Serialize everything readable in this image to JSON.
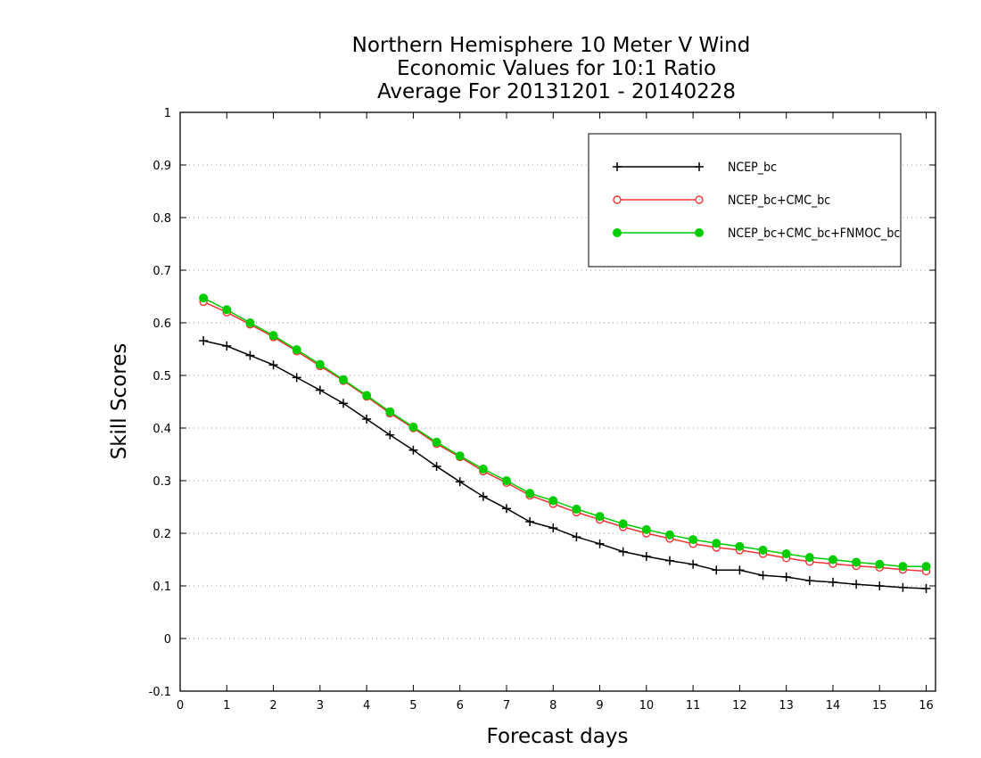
{
  "chart_data": {
    "type": "line",
    "title": [
      "Northern Hemisphere 10 Meter V Wind",
      "Economic Values for 10:1 Ratio",
      "Average For 20131201 - 20140228"
    ],
    "xlabel": "Forecast days",
    "ylabel": "Skill Scores",
    "xlim": [
      0,
      16.2
    ],
    "ylim": [
      -0.1,
      1
    ],
    "xticks": [
      0,
      1,
      2,
      3,
      4,
      5,
      6,
      7,
      8,
      9,
      10,
      11,
      12,
      13,
      14,
      15,
      16
    ],
    "xtick_labels": [
      "0",
      "1",
      "2",
      "3",
      "4",
      "5",
      "6",
      "7",
      "8",
      "9",
      "10",
      "11",
      "12",
      "13",
      "14",
      "15",
      "16"
    ],
    "yticks": [
      -0.1,
      0,
      0.1,
      0.2,
      0.3,
      0.4,
      0.5,
      0.6,
      0.7,
      0.8,
      0.9,
      1
    ],
    "ytick_labels": [
      "-0.1",
      "0",
      "0.1",
      "0.2",
      "0.3",
      "0.4",
      "0.5",
      "0.6",
      "0.7",
      "0.8",
      "0.9",
      "1"
    ],
    "grid": "horizontal dotted",
    "legend_position": "top-right",
    "x": [
      0.5,
      1,
      1.5,
      2,
      2.5,
      3,
      3.5,
      4,
      4.5,
      5,
      5.5,
      6,
      6.5,
      7,
      7.5,
      8,
      8.5,
      9,
      9.5,
      10,
      10.5,
      11,
      11.5,
      12,
      12.5,
      13,
      13.5,
      14,
      14.5,
      15,
      15.5,
      16
    ],
    "series": [
      {
        "name": "NCEP_bc",
        "color": "#000000",
        "marker": "plus",
        "values": [
          0.566,
          0.556,
          0.538,
          0.52,
          0.496,
          0.472,
          0.447,
          0.417,
          0.387,
          0.358,
          0.327,
          0.298,
          0.27,
          0.247,
          0.222,
          0.21,
          0.193,
          0.18,
          0.165,
          0.156,
          0.148,
          0.141,
          0.13,
          0.13,
          0.12,
          0.117,
          0.11,
          0.107,
          0.103,
          0.1,
          0.097,
          0.095
        ]
      },
      {
        "name": "NCEP_bc+CMC_bc",
        "color": "#ee3333",
        "marker": "open-circle",
        "values": [
          0.64,
          0.62,
          0.597,
          0.573,
          0.546,
          0.518,
          0.49,
          0.46,
          0.428,
          0.4,
          0.37,
          0.345,
          0.318,
          0.296,
          0.272,
          0.256,
          0.24,
          0.226,
          0.212,
          0.2,
          0.19,
          0.18,
          0.173,
          0.168,
          0.161,
          0.153,
          0.146,
          0.142,
          0.138,
          0.135,
          0.131,
          0.128
        ]
      },
      {
        "name": "NCEP_bc+CMC_bc+FNMOC_bc",
        "color": "#00cc00",
        "marker": "filled-circle",
        "values": [
          0.647,
          0.625,
          0.6,
          0.576,
          0.549,
          0.521,
          0.492,
          0.462,
          0.431,
          0.402,
          0.373,
          0.347,
          0.322,
          0.3,
          0.276,
          0.262,
          0.246,
          0.232,
          0.218,
          0.207,
          0.197,
          0.188,
          0.181,
          0.175,
          0.168,
          0.161,
          0.154,
          0.15,
          0.145,
          0.141,
          0.137,
          0.137
        ]
      }
    ]
  }
}
